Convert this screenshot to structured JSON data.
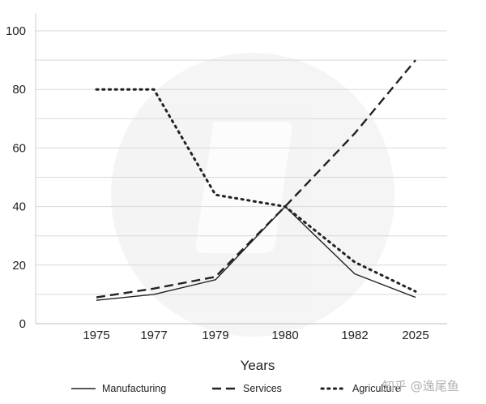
{
  "chart_data": {
    "type": "line",
    "categories": [
      "1975",
      "1977",
      "1979",
      "1980",
      "1982",
      "2025"
    ],
    "xlabel": "Years",
    "ylabel": "",
    "ylim": [
      0,
      100
    ],
    "yticks": [
      0,
      20,
      40,
      60,
      80,
      100
    ],
    "grid": "horizontal",
    "legend_position": "bottom",
    "series": [
      {
        "name": "Manufacturing",
        "style": "solid",
        "color": "#222222",
        "values": [
          8,
          10,
          15,
          40,
          17,
          9
        ]
      },
      {
        "name": "Services",
        "style": "dashed",
        "color": "#222222",
        "values": [
          9,
          12,
          16,
          40,
          65,
          90
        ]
      },
      {
        "name": "Agriculture",
        "style": "dotted",
        "color": "#222222",
        "values": [
          80,
          80,
          44,
          40,
          21,
          11
        ]
      }
    ]
  },
  "watermark": {
    "text": "知乎 @逸尾鱼",
    "color": "#b0b0b0"
  }
}
